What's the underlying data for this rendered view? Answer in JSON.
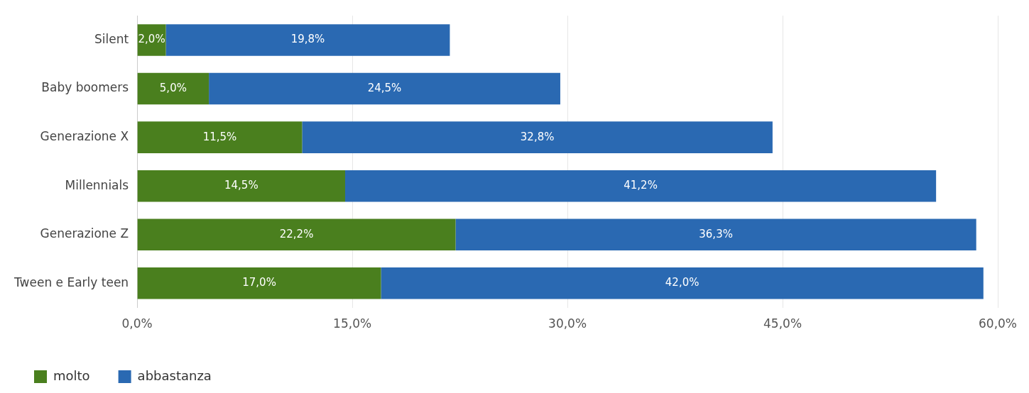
{
  "chart_data": {
    "type": "bar",
    "orientation": "horizontal",
    "stacked": true,
    "categories": [
      "Silent",
      "Baby boomers",
      "Generazione X",
      "Millennials",
      "Generazione Z",
      "Tween e Early teen"
    ],
    "series": [
      {
        "name": "molto",
        "color": "#4a7f1e",
        "values": [
          2.0,
          5.0,
          11.5,
          14.5,
          22.2,
          17.0
        ],
        "value_labels": [
          "2,0%",
          "5,0%",
          "11,5%",
          "14,5%",
          "22,2%",
          "17,0%"
        ]
      },
      {
        "name": "abbastanza",
        "color": "#2a69b2",
        "values": [
          19.8,
          24.5,
          32.8,
          41.2,
          36.3,
          42.0
        ],
        "value_labels": [
          "19,8%",
          "24,5%",
          "32,8%",
          "41,2%",
          "36,3%",
          "42,0%"
        ]
      }
    ],
    "xlim": [
      0,
      60
    ],
    "xticks": [
      {
        "value": 0,
        "label": "0,0%"
      },
      {
        "value": 15,
        "label": "15,0%"
      },
      {
        "value": 30,
        "label": "30,0%"
      },
      {
        "value": 45,
        "label": "45,0%"
      },
      {
        "value": 60,
        "label": "60,0%"
      }
    ],
    "grid": "x",
    "legend": "bottom left"
  }
}
